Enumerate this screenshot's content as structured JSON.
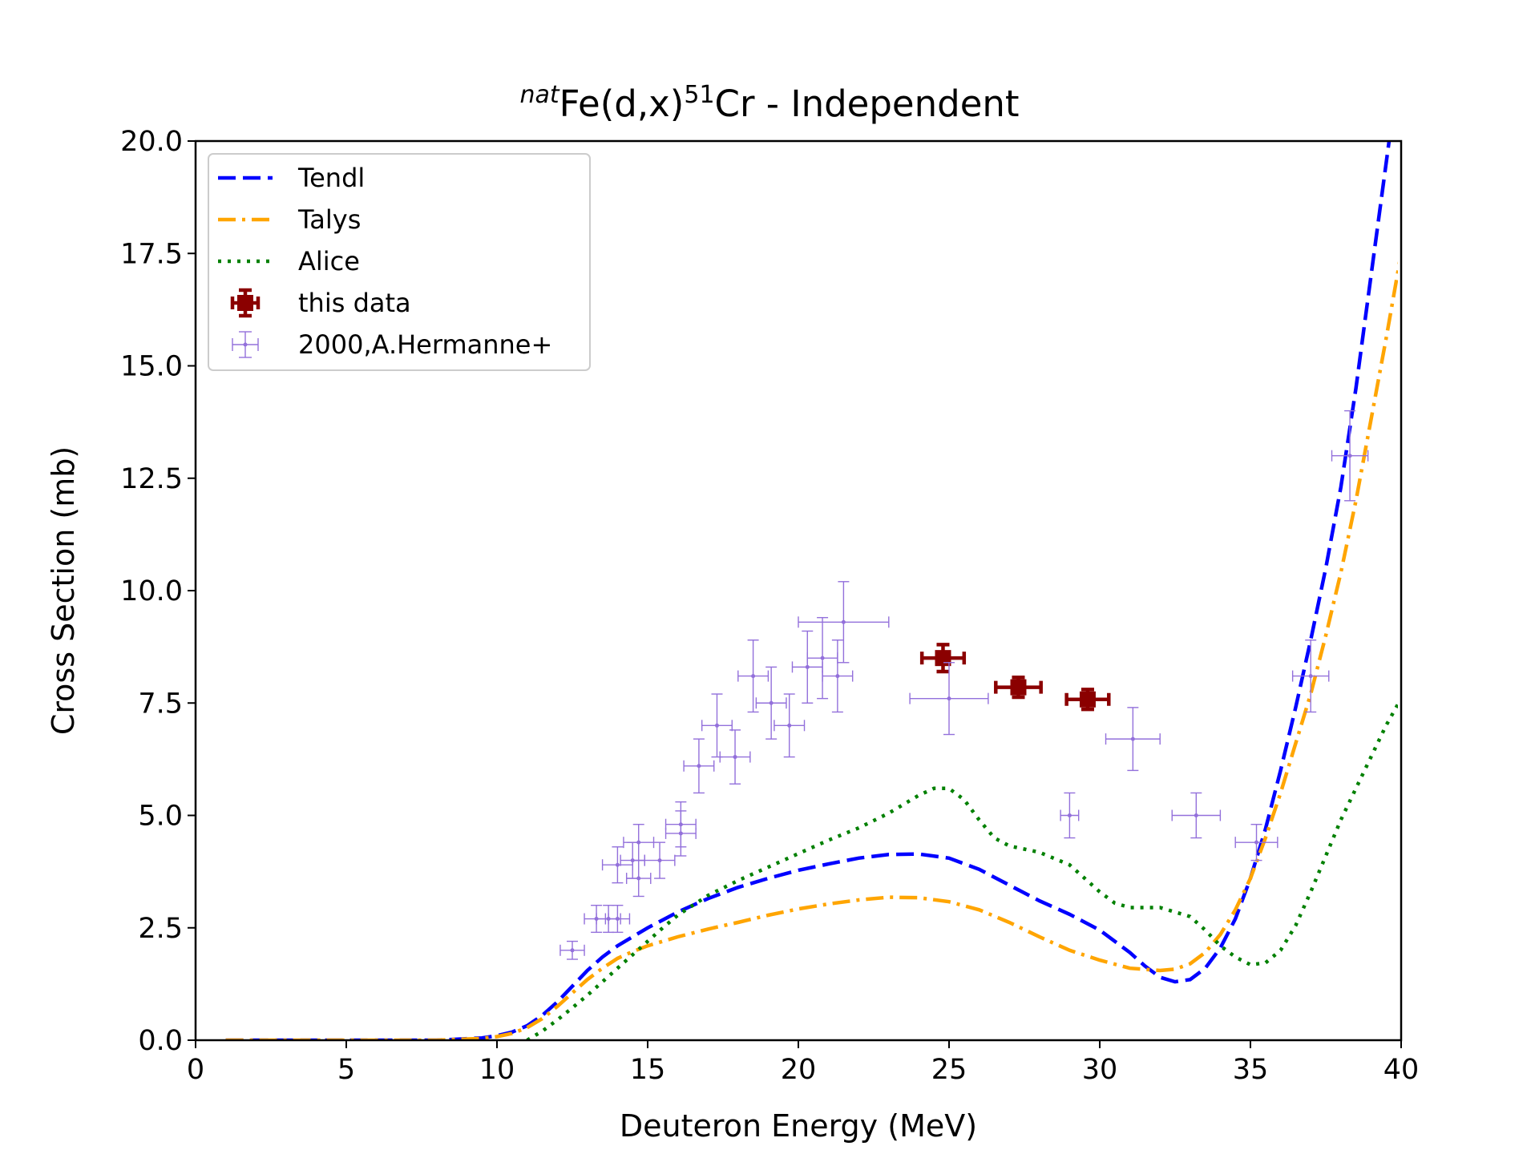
{
  "chart_data": {
    "type": "line",
    "title": {
      "prefix": "nat",
      "element": "Fe(d,x)",
      "mass": "51",
      "product": "Cr - Independent"
    },
    "xlabel": "Deuteron Energy (MeV)",
    "ylabel": "Cross Section (mb)",
    "xlim": [
      0,
      40
    ],
    "ylim": [
      0,
      20
    ],
    "xticks": [
      "0",
      "5",
      "10",
      "15",
      "20",
      "25",
      "30",
      "35",
      "40"
    ],
    "yticks": [
      "0.0",
      "2.5",
      "5.0",
      "7.5",
      "10.0",
      "12.5",
      "15.0",
      "17.5",
      "20.0"
    ],
    "grid": false,
    "legend_position": "top-left",
    "series": [
      {
        "name": "Tendl",
        "kind": "line",
        "style": "dashed",
        "color": "#0000ff",
        "x": [
          1,
          8,
          9.5,
          10,
          10.5,
          11,
          11.5,
          12,
          12.5,
          13,
          13.5,
          14,
          14.5,
          15,
          16,
          17,
          18,
          19,
          20,
          21,
          22,
          23,
          24,
          25,
          26,
          27,
          28,
          29,
          30,
          31,
          31.5,
          32,
          32.5,
          33,
          33.5,
          34,
          34.5,
          35,
          35.5,
          36,
          36.5,
          37,
          37.5,
          38,
          38.5,
          39,
          39.6
        ],
        "y": [
          0,
          0,
          0.05,
          0.1,
          0.18,
          0.32,
          0.55,
          0.85,
          1.2,
          1.55,
          1.85,
          2.1,
          2.3,
          2.5,
          2.85,
          3.15,
          3.4,
          3.6,
          3.78,
          3.92,
          4.05,
          4.13,
          4.14,
          4.05,
          3.8,
          3.45,
          3.1,
          2.8,
          2.45,
          1.95,
          1.65,
          1.4,
          1.3,
          1.35,
          1.6,
          2.05,
          2.7,
          3.6,
          4.7,
          6.0,
          7.4,
          8.9,
          10.5,
          12.3,
          14.5,
          17.0,
          20.0
        ]
      },
      {
        "name": "Talys",
        "kind": "line",
        "style": "dashdot",
        "color": "#ffa500",
        "x": [
          1,
          8,
          9.5,
          10,
          10.5,
          11,
          11.5,
          12,
          12.5,
          13,
          13.5,
          14,
          14.5,
          15,
          16,
          17,
          18,
          19,
          20,
          21,
          22,
          23,
          24,
          25,
          26,
          27,
          28,
          29,
          30,
          31,
          32,
          32.5,
          33,
          33.5,
          34,
          34.5,
          35,
          35.5,
          36,
          36.5,
          37,
          37.5,
          38,
          38.5,
          39,
          39.5,
          40
        ],
        "y": [
          0,
          0,
          0.04,
          0.08,
          0.15,
          0.28,
          0.48,
          0.75,
          1.05,
          1.35,
          1.6,
          1.82,
          1.97,
          2.1,
          2.3,
          2.47,
          2.62,
          2.78,
          2.92,
          3.03,
          3.12,
          3.18,
          3.17,
          3.08,
          2.9,
          2.62,
          2.3,
          2.0,
          1.78,
          1.6,
          1.55,
          1.58,
          1.7,
          1.95,
          2.35,
          2.9,
          3.6,
          4.5,
          5.5,
          6.6,
          7.7,
          9.0,
          10.4,
          12.0,
          13.8,
          15.6,
          17.5
        ]
      },
      {
        "name": "Alice",
        "kind": "line",
        "style": "dotted",
        "color": "#008000",
        "x": [
          11,
          11.5,
          12,
          12.5,
          13,
          13.5,
          14,
          14.5,
          15,
          15.5,
          16,
          17,
          18,
          19,
          20,
          21,
          22,
          23,
          24,
          24.5,
          25,
          25.5,
          26,
          26.5,
          27,
          28,
          29,
          29.5,
          30,
          30.5,
          31,
          32,
          33,
          33.5,
          34,
          34.5,
          35,
          35.5,
          36,
          36.5,
          37,
          37.5,
          38,
          38.5,
          39,
          39.5,
          40
        ],
        "y": [
          0,
          0.2,
          0.45,
          0.72,
          1.0,
          1.3,
          1.6,
          1.9,
          2.2,
          2.5,
          2.78,
          3.22,
          3.55,
          3.85,
          4.15,
          4.45,
          4.72,
          5.05,
          5.45,
          5.6,
          5.6,
          5.35,
          4.9,
          4.5,
          4.32,
          4.18,
          3.9,
          3.6,
          3.3,
          3.05,
          2.95,
          2.95,
          2.75,
          2.45,
          2.1,
          1.85,
          1.68,
          1.72,
          2.0,
          2.55,
          3.3,
          4.1,
          4.9,
          5.6,
          6.3,
          7.0,
          7.6
        ]
      },
      {
        "name": "this data",
        "kind": "errorbar",
        "color": "#8b0000",
        "points": [
          {
            "x": 24.8,
            "y": 8.5,
            "xerr": 0.7,
            "yerr": 0.3
          },
          {
            "x": 27.3,
            "y": 7.85,
            "xerr": 0.75,
            "yerr": 0.22
          },
          {
            "x": 29.6,
            "y": 7.58,
            "xerr": 0.7,
            "yerr": 0.22
          }
        ]
      },
      {
        "name": "2000,A.Hermanne+",
        "kind": "errorbar",
        "color": "#9370db",
        "points": [
          {
            "x": 12.5,
            "y": 2.0,
            "xerr": 0.4,
            "yerr": 0.2
          },
          {
            "x": 13.3,
            "y": 2.7,
            "xerr": 0.4,
            "yerr": 0.3
          },
          {
            "x": 13.7,
            "y": 2.7,
            "xerr": 0.4,
            "yerr": 0.3
          },
          {
            "x": 14.0,
            "y": 2.7,
            "xerr": 0.4,
            "yerr": 0.3
          },
          {
            "x": 14.0,
            "y": 3.9,
            "xerr": 0.5,
            "yerr": 0.4
          },
          {
            "x": 14.5,
            "y": 4.0,
            "xerr": 0.4,
            "yerr": 0.4
          },
          {
            "x": 14.7,
            "y": 4.4,
            "xerr": 0.5,
            "yerr": 0.4
          },
          {
            "x": 14.7,
            "y": 3.6,
            "xerr": 0.4,
            "yerr": 0.4
          },
          {
            "x": 15.4,
            "y": 4.0,
            "xerr": 0.5,
            "yerr": 0.4
          },
          {
            "x": 16.1,
            "y": 4.8,
            "xerr": 0.5,
            "yerr": 0.5
          },
          {
            "x": 16.1,
            "y": 4.6,
            "xerr": 0.5,
            "yerr": 0.5
          },
          {
            "x": 16.7,
            "y": 6.1,
            "xerr": 0.5,
            "yerr": 0.6
          },
          {
            "x": 17.3,
            "y": 7.0,
            "xerr": 0.5,
            "yerr": 0.7
          },
          {
            "x": 17.9,
            "y": 6.3,
            "xerr": 0.5,
            "yerr": 0.6
          },
          {
            "x": 18.5,
            "y": 8.1,
            "xerr": 0.5,
            "yerr": 0.8
          },
          {
            "x": 19.1,
            "y": 7.5,
            "xerr": 0.5,
            "yerr": 0.8
          },
          {
            "x": 19.7,
            "y": 7.0,
            "xerr": 0.5,
            "yerr": 0.7
          },
          {
            "x": 20.3,
            "y": 8.3,
            "xerr": 0.5,
            "yerr": 0.8
          },
          {
            "x": 20.8,
            "y": 8.5,
            "xerr": 0.5,
            "yerr": 0.9
          },
          {
            "x": 21.3,
            "y": 8.1,
            "xerr": 0.5,
            "yerr": 0.8
          },
          {
            "x": 21.5,
            "y": 9.3,
            "xerr": 1.5,
            "yerr": 0.9
          },
          {
            "x": 25.0,
            "y": 7.6,
            "xerr": 1.3,
            "yerr": 0.8
          },
          {
            "x": 29.0,
            "y": 5.0,
            "xerr": 0.3,
            "yerr": 0.5
          },
          {
            "x": 31.1,
            "y": 6.7,
            "xerr": 0.9,
            "yerr": 0.7
          },
          {
            "x": 33.2,
            "y": 5.0,
            "xerr": 0.8,
            "yerr": 0.5
          },
          {
            "x": 35.2,
            "y": 4.4,
            "xerr": 0.7,
            "yerr": 0.4
          },
          {
            "x": 37.0,
            "y": 8.1,
            "xerr": 0.6,
            "yerr": 0.8
          },
          {
            "x": 38.3,
            "y": 13.0,
            "xerr": 0.6,
            "yerr": 1.0
          }
        ]
      }
    ]
  }
}
